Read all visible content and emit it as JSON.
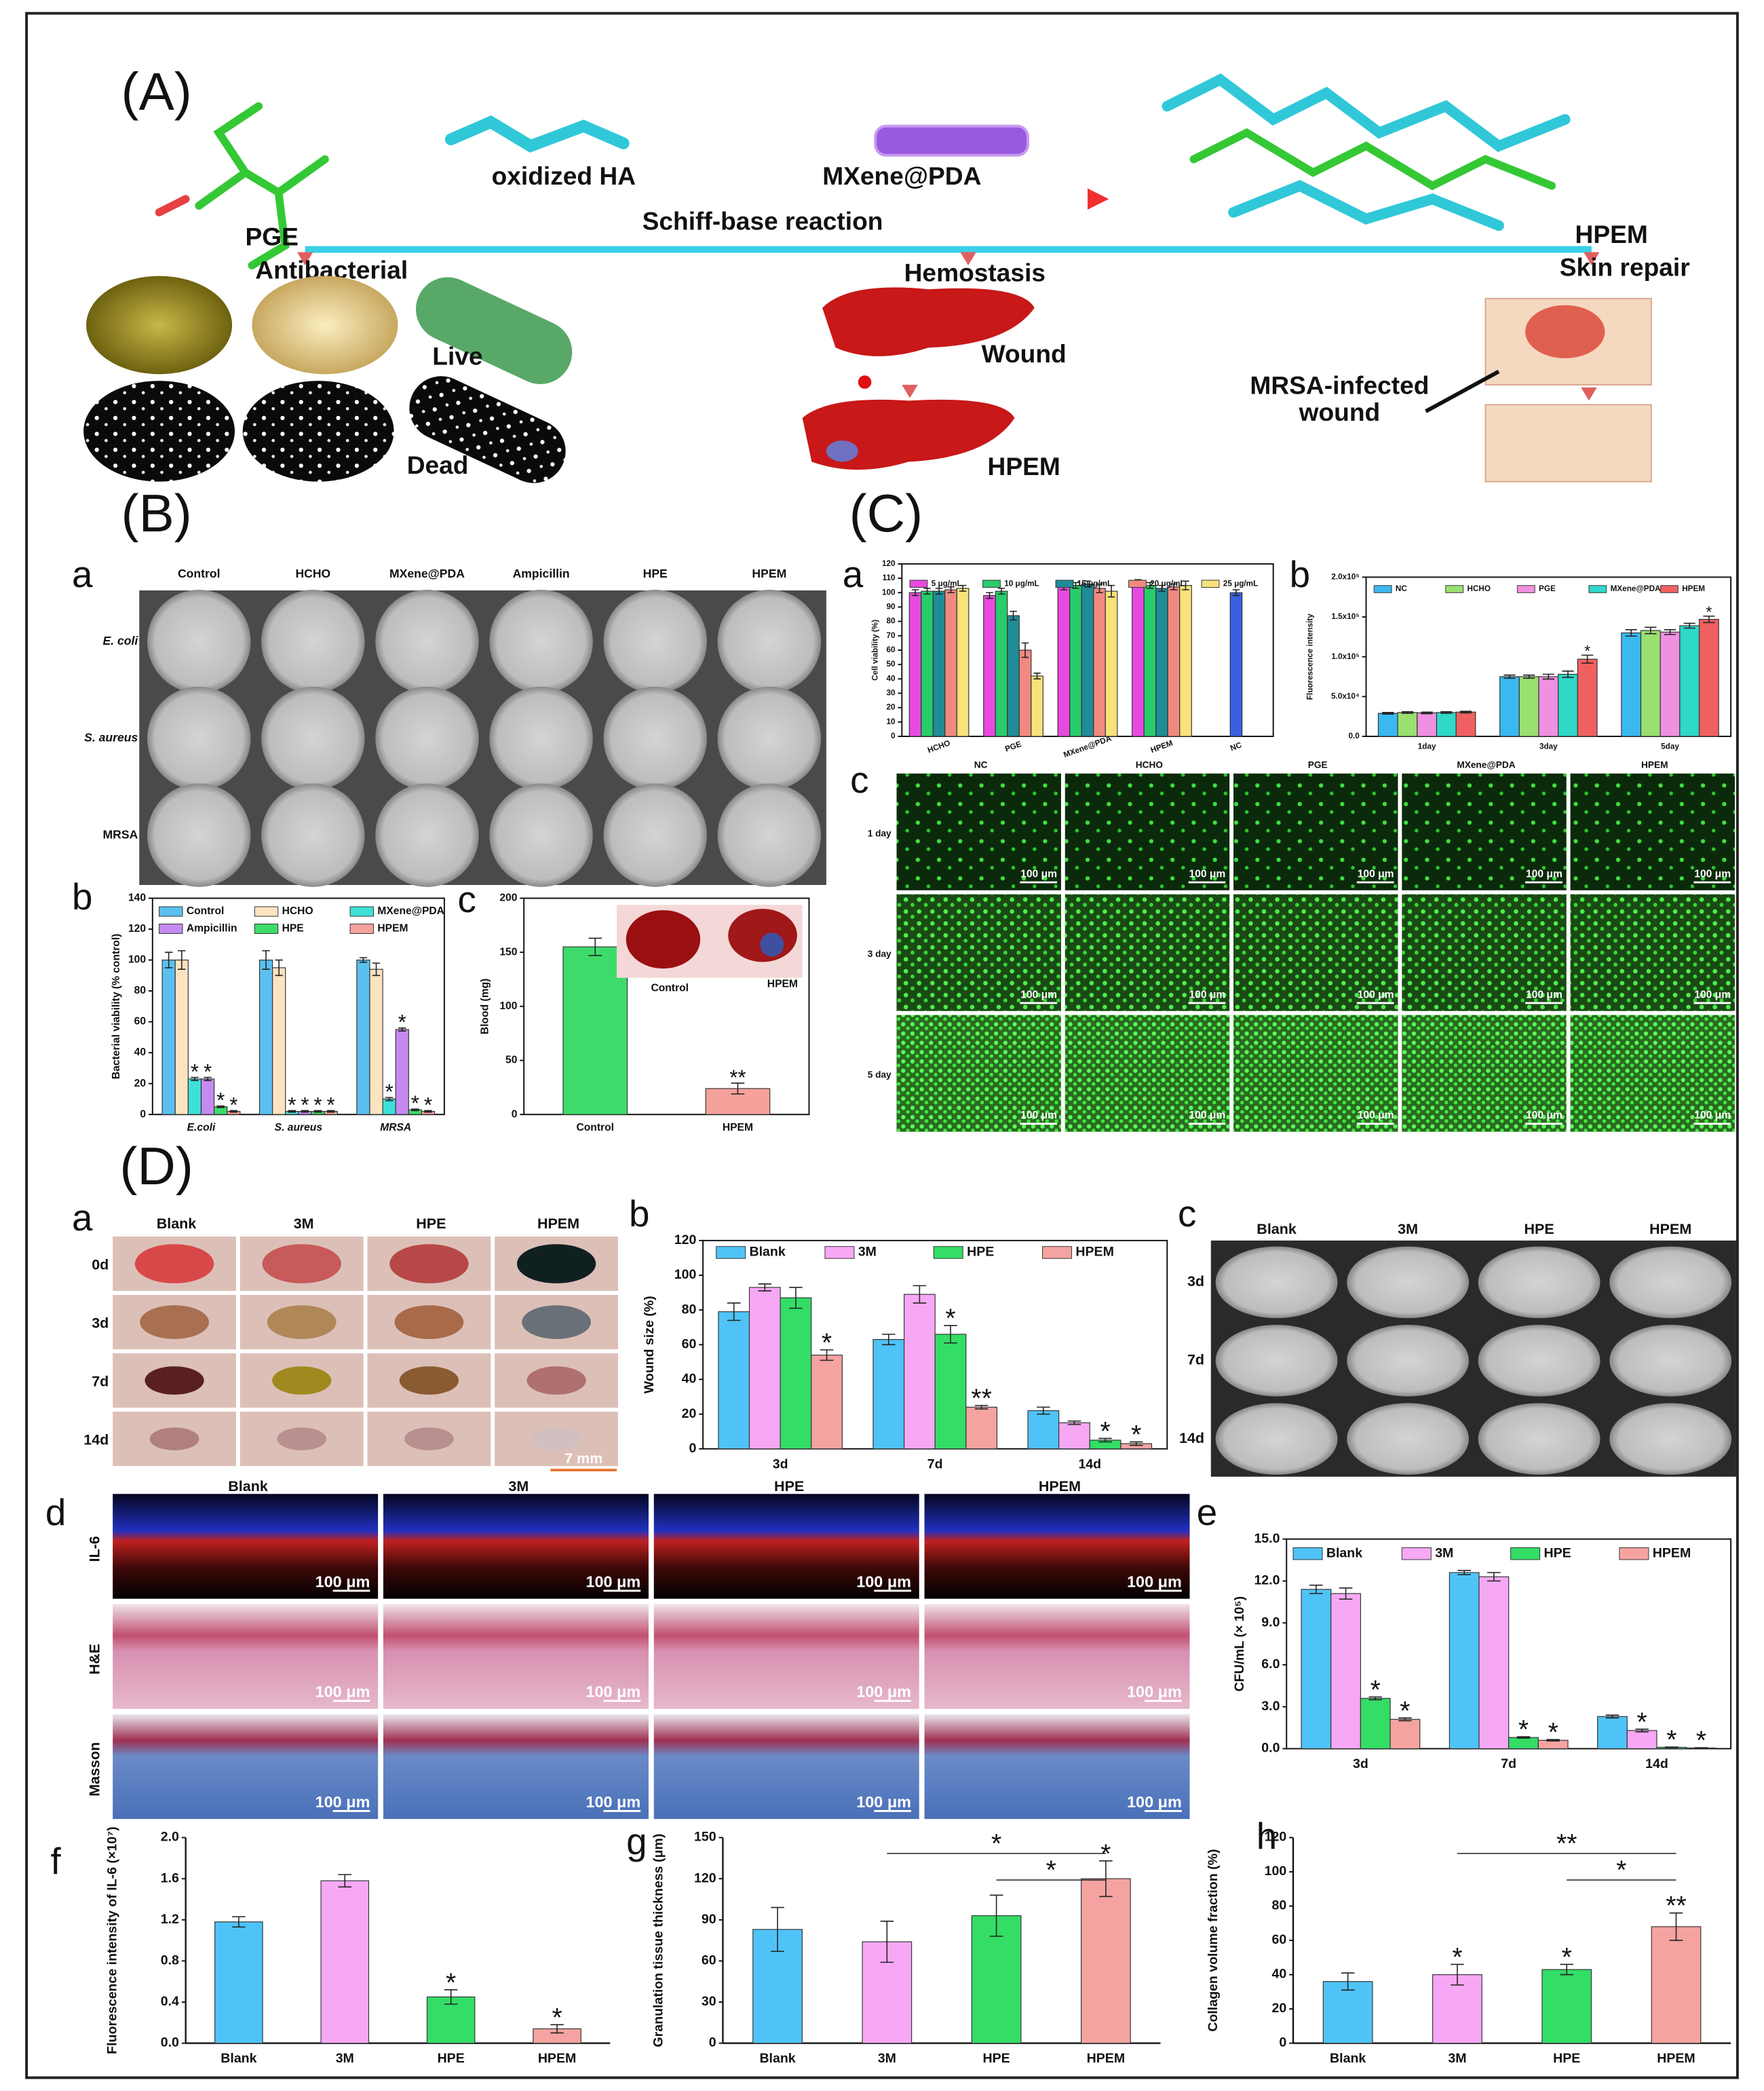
{
  "figure": {
    "panel_a": {
      "label": "(A)",
      "oxidized_ha": "oxidized HA",
      "mxene": "MXene@PDA",
      "reaction": "Schiff-base reaction",
      "pge": "PGE",
      "hpem": "HPEM",
      "antibacterial": "Antibacterial",
      "hemostasis": "Hemostasis",
      "skin_repair": "Skin repair",
      "live": "Live",
      "dead": "Dead",
      "wound": "Wound",
      "hpem_liver": "HPEM",
      "mrsa_line1": "MRSA-infected",
      "mrsa_line2": "wound"
    },
    "panel_b_label": "(B)",
    "panel_c_label": "(C)",
    "panel_d_label": "(D)",
    "plates_b": {
      "label": "a",
      "columns": [
        "Control",
        "HCHO",
        "MXene@PDA",
        "Ampicillin",
        "HPE",
        "HPEM"
      ],
      "rows": [
        "E. coli",
        "S. aureus",
        "MRSA"
      ]
    },
    "images_c": {
      "label": "c",
      "columns": [
        "NC",
        "HCHO",
        "PGE",
        "MXene@PDA",
        "HPEM"
      ],
      "rows": [
        "1 day",
        "3 day",
        "5 day"
      ],
      "scale_bar": "100 μm"
    },
    "photos_d": {
      "label": "a",
      "columns": [
        "Blank",
        "3M",
        "HPE",
        "HPEM"
      ],
      "rows": [
        "0d",
        "3d",
        "7d",
        "14d"
      ],
      "scale_bar": "7 mm"
    },
    "plates_d": {
      "label": "c",
      "columns": [
        "Blank",
        "3M",
        "HPE",
        "HPEM"
      ],
      "rows": [
        "3d",
        "7d",
        "14d"
      ]
    },
    "histology_d": {
      "label": "d",
      "columns": [
        "Blank",
        "3M",
        "HPE",
        "HPEM"
      ],
      "rows": [
        "IL-6",
        "H&E",
        "Masson"
      ],
      "scale_bar": "100 μm"
    }
  },
  "chart_data": [
    {
      "type": "bar",
      "label": "b",
      "y_label": "Bacterial viability (% control)",
      "categories": [
        "E.coli",
        "S. aureus",
        "MRSA"
      ],
      "ylim": [
        0,
        140
      ],
      "yticks": [
        0,
        20,
        40,
        60,
        80,
        100,
        120,
        140
      ],
      "series": [
        {
          "name": "Control",
          "color": "#5bc0f0",
          "values": [
            100,
            100,
            100
          ],
          "errors": [
            5,
            6,
            1.5
          ]
        },
        {
          "name": "HCHO",
          "color": "#fde3bf",
          "values": [
            100,
            95,
            94
          ],
          "errors": [
            6,
            5,
            4
          ]
        },
        {
          "name": "MXene@PDA",
          "color": "#3ee0d8",
          "values": [
            23,
            2,
            10
          ],
          "errors": [
            1,
            0.5,
            1
          ],
          "significance": [
            "*",
            "*",
            "*"
          ]
        },
        {
          "name": "Ampicillin",
          "color": "#c58af0",
          "values": [
            23,
            2,
            55
          ],
          "errors": [
            1,
            0.5,
            1
          ],
          "significance": [
            "*",
            "*",
            "*"
          ]
        },
        {
          "name": "HPE",
          "color": "#3ddc6a",
          "values": [
            5,
            2,
            3
          ],
          "errors": [
            0.5,
            0.5,
            0.5
          ],
          "significance": [
            "*",
            "*",
            "*"
          ]
        },
        {
          "name": "HPEM",
          "color": "#f5a19c",
          "values": [
            2,
            2,
            2
          ],
          "errors": [
            0.5,
            0.5,
            0.5
          ],
          "significance": [
            "*",
            "*",
            "*"
          ]
        }
      ]
    },
    {
      "type": "bar",
      "label": "c",
      "y_label": "Blood (mg)",
      "categories": [
        "Control",
        "HPEM"
      ],
      "values": [
        155,
        24
      ],
      "errors": [
        8,
        5
      ],
      "colors": [
        "#3ddc6a",
        "#f5a19c"
      ],
      "significance": [
        null,
        "**"
      ],
      "ylim": [
        0,
        200
      ],
      "yticks": [
        0,
        50,
        100,
        150,
        200
      ],
      "inset_labels": [
        "Control",
        "HPEM"
      ]
    },
    {
      "type": "bar",
      "label": "a",
      "y_label": "Cell viability (%)",
      "categories": [
        "HCHO",
        "PGE",
        "MXene@PDA",
        "HPEM"
      ],
      "ylim": [
        0,
        120
      ],
      "yticks": [
        0,
        10,
        20,
        30,
        40,
        50,
        60,
        70,
        80,
        90,
        100,
        110,
        120
      ],
      "series": [
        {
          "name": "5 μg/mL",
          "color": "#e84ae0",
          "values": [
            100,
            98,
            104,
            107
          ],
          "errors": [
            2,
            2,
            2,
            2
          ]
        },
        {
          "name": "10 μg/mL",
          "color": "#28cc6a",
          "values": [
            101,
            101,
            105,
            105
          ],
          "errors": [
            2,
            2,
            2,
            2
          ]
        },
        {
          "name": "15 μg/mL",
          "color": "#1f8c98",
          "values": [
            101,
            84,
            106,
            103
          ],
          "errors": [
            2,
            3,
            2,
            2
          ]
        },
        {
          "name": "20 μg/mL",
          "color": "#f08a80",
          "values": [
            102,
            60,
            103,
            104
          ],
          "errors": [
            2,
            5,
            3,
            2
          ]
        },
        {
          "name": "25 μg/mL",
          "color": "#f8e27a",
          "values": [
            103,
            42,
            101,
            105
          ],
          "errors": [
            2,
            2,
            4,
            3
          ]
        }
      ],
      "extra": {
        "category": "NC",
        "value": 100,
        "error": 2,
        "color": "#3a5fe0"
      }
    },
    {
      "type": "bar",
      "label": "b",
      "y_label": "Fluorescence intensity",
      "categories": [
        "1day",
        "3day",
        "5day"
      ],
      "ylim": [
        0,
        200000
      ],
      "yticks": [
        {
          "value": 0,
          "label": "0.0"
        },
        {
          "value": 50000,
          "label": "5.0x10⁴"
        },
        {
          "value": 100000,
          "label": "1.0x10⁵"
        },
        {
          "value": 150000,
          "label": "1.5x10⁵"
        },
        {
          "value": 200000,
          "label": "2.0x10⁵"
        }
      ],
      "series": [
        {
          "name": "NC",
          "color": "#3ab8f0",
          "values": [
            29000,
            75000,
            130000
          ],
          "errors": [
            1000,
            2000,
            4000
          ]
        },
        {
          "name": "HCHO",
          "color": "#9ae070",
          "values": [
            30000,
            75000,
            133000
          ],
          "errors": [
            1000,
            2000,
            4000
          ]
        },
        {
          "name": "PGE",
          "color": "#f090e0",
          "values": [
            29500,
            75000,
            131000
          ],
          "errors": [
            1000,
            3000,
            3000
          ]
        },
        {
          "name": "MXene@PDA",
          "color": "#30d8c8",
          "values": [
            30000,
            78000,
            139000
          ],
          "errors": [
            1000,
            4000,
            3000
          ]
        },
        {
          "name": "HPEM",
          "color": "#f06060",
          "values": [
            30500,
            97000,
            147000
          ],
          "errors": [
            1000,
            5000,
            4000
          ],
          "significance": [
            null,
            "*",
            "*"
          ]
        }
      ]
    },
    {
      "type": "bar",
      "label": "b",
      "y_label": "Wound size (%)",
      "categories": [
        "3d",
        "7d",
        "14d"
      ],
      "ylim": [
        0,
        120
      ],
      "yticks": [
        0,
        20,
        40,
        60,
        80,
        100,
        120
      ],
      "series": [
        {
          "name": "Blank",
          "color": "#4fc3f7",
          "values": [
            79,
            63,
            22
          ],
          "errors": [
            5,
            3,
            2
          ]
        },
        {
          "name": "3M",
          "color": "#f6a8f4",
          "values": [
            93,
            89,
            15
          ],
          "errors": [
            2,
            5,
            1
          ]
        },
        {
          "name": "HPE",
          "color": "#33dd66",
          "values": [
            87,
            66,
            5
          ],
          "errors": [
            6,
            5,
            1
          ],
          "significance": [
            null,
            "*",
            "*"
          ]
        },
        {
          "name": "HPEM",
          "color": "#f4a3a0",
          "values": [
            54,
            24,
            3
          ],
          "errors": [
            3,
            1,
            1
          ],
          "significance": [
            "*",
            "**",
            "*"
          ]
        }
      ]
    },
    {
      "type": "bar",
      "label": "e",
      "y_label": "CFU/mL (× 10⁵)",
      "categories": [
        "3d",
        "7d",
        "14d"
      ],
      "ylim": [
        0,
        15
      ],
      "yticks": [
        {
          "value": 0,
          "label": "0.0"
        },
        {
          "value": 3,
          "label": "3.0"
        },
        {
          "value": 6,
          "label": "6.0"
        },
        {
          "value": 9,
          "label": "9.0"
        },
        {
          "value": 12,
          "label": "12.0"
        },
        {
          "value": 15,
          "label": "15.0"
        }
      ],
      "series": [
        {
          "name": "Blank",
          "color": "#4fc3f7",
          "values": [
            11.4,
            12.6,
            2.3
          ],
          "errors": [
            0.3,
            0.15,
            0.1
          ]
        },
        {
          "name": "3M",
          "color": "#f6a8f4",
          "values": [
            11.1,
            12.3,
            1.3
          ],
          "errors": [
            0.4,
            0.3,
            0.1
          ],
          "significance": [
            null,
            null,
            "*"
          ]
        },
        {
          "name": "HPE",
          "color": "#33dd66",
          "values": [
            3.6,
            0.8,
            0.1
          ],
          "errors": [
            0.1,
            0.05,
            0.02
          ],
          "significance": [
            "*",
            "*",
            "*"
          ]
        },
        {
          "name": "HPEM",
          "color": "#f4a3a0",
          "values": [
            2.1,
            0.6,
            0.05
          ],
          "errors": [
            0.1,
            0.05,
            0.02
          ],
          "significance": [
            "*",
            "*",
            "*"
          ]
        }
      ]
    },
    {
      "type": "bar",
      "label": "f",
      "y_label": "Fluorescence intensity of IL-6 (×10⁷)",
      "categories": [
        "Blank",
        "3M",
        "HPE",
        "HPEM"
      ],
      "values": [
        1.18,
        1.58,
        0.45,
        0.14
      ],
      "errors": [
        0.05,
        0.06,
        0.07,
        0.04
      ],
      "colors": [
        "#4fc3f7",
        "#f6a8f4",
        "#33dd66",
        "#f4a3a0"
      ],
      "significance": [
        null,
        null,
        "*",
        "*"
      ],
      "ylim": [
        0,
        2
      ],
      "yticks": [
        {
          "value": 0,
          "label": "0.0"
        },
        0.4,
        0.8,
        1.2,
        1.6,
        {
          "value": 2,
          "label": "2.0"
        }
      ]
    },
    {
      "type": "bar",
      "label": "g",
      "y_label": "Granulation tissue thickness (μm)",
      "categories": [
        "Blank",
        "3M",
        "HPE",
        "HPEM"
      ],
      "values": [
        83,
        74,
        93,
        120
      ],
      "errors": [
        16,
        15,
        15,
        13
      ],
      "colors": [
        "#4fc3f7",
        "#f6a8f4",
        "#33dd66",
        "#f4a3a0"
      ],
      "significance": [
        null,
        null,
        null,
        "*"
      ],
      "ylim": [
        0,
        150
      ],
      "yticks": [
        0,
        30,
        60,
        90,
        120,
        150
      ],
      "comparisons": [
        {
          "from": "3M",
          "to": "HPEM",
          "label": "*"
        },
        {
          "from": "HPE",
          "to": "HPEM",
          "label": "*"
        }
      ]
    },
    {
      "type": "bar",
      "label": "h",
      "y_label": "Collagen volume fraction (%)",
      "categories": [
        "Blank",
        "3M",
        "HPE",
        "HPEM"
      ],
      "values": [
        36,
        40,
        43,
        68
      ],
      "errors": [
        5,
        6,
        3,
        8
      ],
      "colors": [
        "#4fc3f7",
        "#f6a8f4",
        "#33dd66",
        "#f4a3a0"
      ],
      "significance": [
        null,
        "*",
        "*",
        "**"
      ],
      "ylim": [
        0,
        120
      ],
      "yticks": [
        0,
        20,
        40,
        60,
        80,
        100,
        120
      ],
      "comparisons": [
        {
          "from": "3M",
          "to": "HPEM",
          "label": "**"
        },
        {
          "from": "HPE",
          "to": "HPEM",
          "label": "*"
        }
      ]
    }
  ]
}
